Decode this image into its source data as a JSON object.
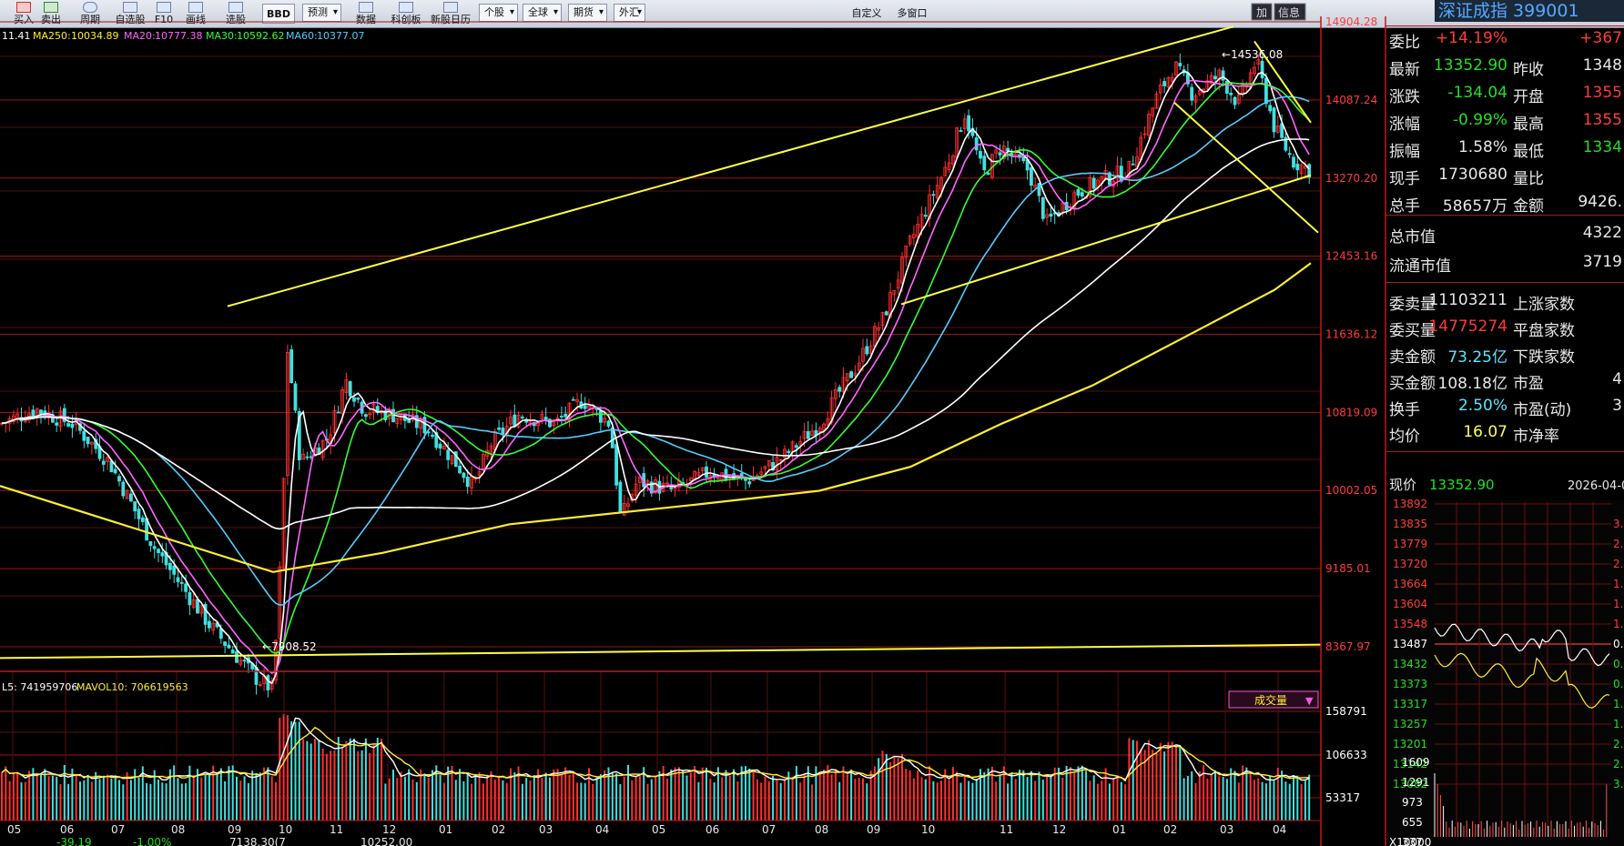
{
  "toolbar": {
    "items": [
      "买入",
      "卖出",
      "周期",
      "自选股",
      "F10",
      "画线",
      "选股",
      "BBD",
      "预测",
      "数据",
      "科创板",
      "新股日历"
    ],
    "dropdowns": [
      "个股",
      "全球",
      "期货",
      "外汇"
    ],
    "right_items": [
      "自定义",
      "多窗口"
    ],
    "panel_buttons": [
      "加",
      "信息"
    ]
  },
  "title": "深证成指 399001",
  "ma_legend": {
    "lead": "11.41",
    "ma250_label": "MA250:",
    "ma250_value": "10034.89",
    "ma20_label": "MA20:",
    "ma20_value": "10777.38",
    "ma30_label": "MA30:",
    "ma30_value": "10592.62",
    "ma60_label": "MA60:",
    "ma60_value": "10377.07"
  },
  "price_axis": [
    "14904.28",
    "14087.24",
    "13270.20",
    "12453.16",
    "11636.12",
    "10819.09",
    "10002.05",
    "9185.01",
    "8367.97"
  ],
  "annotations": {
    "high": "14536.08",
    "low": "7908.52"
  },
  "volume_legend": {
    "mavol5": "L5: 741959706",
    "mavol10": "MAVOL10: 706619563"
  },
  "volume_badge": "成交量",
  "volume_axis": [
    "158791",
    "106633",
    "53317"
  ],
  "x_axis": [
    "05",
    "06",
    "07",
    "08",
    "09",
    "10",
    "11",
    "12",
    "01",
    "02",
    "03",
    "04",
    "05",
    "06",
    "07",
    "08",
    "09",
    "10",
    "11",
    "12",
    "01",
    "02",
    "03",
    "04"
  ],
  "footer": [
    "-39.19",
    "-1.00%",
    "7138.30(7",
    "10252.00"
  ],
  "colors": {
    "up": "#ff3030",
    "down": "#40e0e0",
    "ma5": "#ffffff",
    "ma20": "#ff66ff",
    "ma30": "#33ff33",
    "ma60": "#55ccff",
    "ma250": "#ffee33",
    "trend": "#ffff40",
    "grid": "#9a1414"
  },
  "quote": {
    "rows": [
      {
        "label": "委比",
        "value": "+14.19%",
        "value_color": "red",
        "label2": "",
        "value2": "+367",
        "value2_color": "red"
      },
      {
        "label": "最新",
        "value": "13352.90",
        "value_color": "grn",
        "label2": "昨收",
        "value2": "1348",
        "value2_color": "wht"
      },
      {
        "label": "涨跌",
        "value": "-134.04",
        "value_color": "grn",
        "label2": "开盘",
        "value2": "1355",
        "value2_color": "red"
      },
      {
        "label": "涨幅",
        "value": "-0.99%",
        "value_color": "grn",
        "label2": "最高",
        "value2": "1355",
        "value2_color": "red"
      },
      {
        "label": "振幅",
        "value": "1.58%",
        "value_color": "wht",
        "label2": "最低",
        "value2": "1334",
        "value2_color": "grn"
      },
      {
        "label": "现手",
        "value": "1730680",
        "value_color": "wht",
        "label2": "量比",
        "value2": "",
        "value2_color": "wht"
      },
      {
        "label": "总手",
        "value": "58657万",
        "value_color": "wht",
        "label2": "金额",
        "value2": "9426.",
        "value2_color": "wht"
      }
    ],
    "mkt": [
      {
        "label": "总市值",
        "value": "4322"
      },
      {
        "label": "流通市值",
        "value": "3719"
      }
    ],
    "rows2": [
      {
        "label": "委卖量",
        "value": "11103211",
        "value_color": "wht",
        "label2": "上涨家数",
        "value2": ""
      },
      {
        "label": "委买量",
        "value": "14775274",
        "value_color": "red",
        "label2": "平盘家数",
        "value2": ""
      },
      {
        "label": "卖金额",
        "value": "73.25亿",
        "value_color": "cyn",
        "label2": "下跌家数",
        "value2": ""
      },
      {
        "label": "买金额",
        "value": "108.18亿",
        "value_color": "wht",
        "label2": "市盈",
        "value2": "4"
      },
      {
        "label": "换手",
        "value": "2.50%",
        "value_color": "cyn",
        "label2": "市盈(动)",
        "value2": "3"
      },
      {
        "label": "均价",
        "value": "16.07",
        "value_color": "yel",
        "label2": "市净率",
        "value2": ""
      }
    ],
    "now_label": "现价",
    "now_value": "13352.90",
    "date": "2026-04-0"
  },
  "intraday": {
    "price_ticks": [
      "13892",
      "13835",
      "13779",
      "13720",
      "13664",
      "13604",
      "13548",
      "13487",
      "13432",
      "13373",
      "13317",
      "13257",
      "13201",
      "13142",
      "13082"
    ],
    "pct_ticks": [
      "3.",
      "2.",
      "2.",
      "1.",
      "1.",
      "1.",
      "0.",
      "0.",
      "0.",
      "1.",
      "1.",
      "2.",
      "2.",
      "3."
    ],
    "vol_ticks": [
      "1609",
      "1291",
      "973",
      "655",
      "337"
    ],
    "vol_unit": "X10000"
  }
}
